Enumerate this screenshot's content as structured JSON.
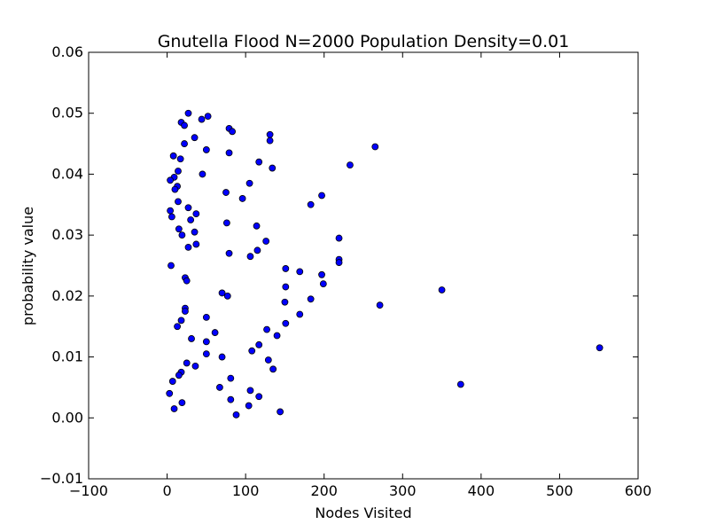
{
  "chart_data": {
    "type": "scatter",
    "title": "Gnutella Flood N=2000 Population Density=0.01",
    "xlabel": "Nodes Visited",
    "ylabel": "probability value",
    "xlim": [
      -100,
      600
    ],
    "ylim": [
      -0.01,
      0.06
    ],
    "xticks": [
      "−100",
      "0",
      "100",
      "200",
      "300",
      "400",
      "500",
      "600"
    ],
    "yticks": [
      "−0.01",
      "0.00",
      "0.01",
      "0.02",
      "0.03",
      "0.04",
      "0.05",
      "0.06"
    ],
    "grid": false,
    "marker_color": "#0000ff",
    "marker_edge_color": "#000000",
    "series": [
      {
        "points": [
          [
            27,
            0.05
          ],
          [
            52,
            0.0495
          ],
          [
            44,
            0.049
          ],
          [
            18,
            0.0485
          ],
          [
            22,
            0.048
          ],
          [
            79,
            0.0475
          ],
          [
            83,
            0.047
          ],
          [
            131,
            0.0465
          ],
          [
            131,
            0.0455
          ],
          [
            35,
            0.046
          ],
          [
            22,
            0.045
          ],
          [
            265,
            0.0445
          ],
          [
            50,
            0.044
          ],
          [
            79,
            0.0435
          ],
          [
            8,
            0.043
          ],
          [
            17,
            0.0425
          ],
          [
            117,
            0.042
          ],
          [
            233,
            0.0415
          ],
          [
            134,
            0.041
          ],
          [
            14,
            0.0405
          ],
          [
            45,
            0.04
          ],
          [
            9,
            0.0395
          ],
          [
            4,
            0.039
          ],
          [
            105,
            0.0385
          ],
          [
            13,
            0.038
          ],
          [
            10,
            0.0375
          ],
          [
            75,
            0.037
          ],
          [
            197,
            0.0365
          ],
          [
            96,
            0.036
          ],
          [
            14,
            0.0355
          ],
          [
            183,
            0.035
          ],
          [
            27,
            0.0345
          ],
          [
            4,
            0.034
          ],
          [
            37,
            0.0335
          ],
          [
            6,
            0.033
          ],
          [
            30,
            0.0325
          ],
          [
            76,
            0.032
          ],
          [
            114,
            0.0315
          ],
          [
            15,
            0.031
          ],
          [
            35,
            0.0305
          ],
          [
            19,
            0.03
          ],
          [
            219,
            0.0295
          ],
          [
            126,
            0.029
          ],
          [
            37,
            0.0285
          ],
          [
            27,
            0.028
          ],
          [
            115,
            0.0275
          ],
          [
            79,
            0.027
          ],
          [
            106,
            0.0265
          ],
          [
            219,
            0.026
          ],
          [
            219,
            0.0255
          ],
          [
            5,
            0.025
          ],
          [
            151,
            0.0245
          ],
          [
            169,
            0.024
          ],
          [
            197,
            0.0235
          ],
          [
            23,
            0.023
          ],
          [
            25,
            0.0225
          ],
          [
            151,
            0.0215
          ],
          [
            199,
            0.022
          ],
          [
            350,
            0.021
          ],
          [
            70,
            0.0205
          ],
          [
            77,
            0.02
          ],
          [
            183,
            0.0195
          ],
          [
            150,
            0.019
          ],
          [
            271,
            0.0185
          ],
          [
            23,
            0.018
          ],
          [
            23,
            0.0175
          ],
          [
            169,
            0.017
          ],
          [
            50,
            0.0165
          ],
          [
            18,
            0.016
          ],
          [
            151,
            0.0155
          ],
          [
            13,
            0.015
          ],
          [
            127,
            0.0145
          ],
          [
            61,
            0.014
          ],
          [
            140,
            0.0135
          ],
          [
            31,
            0.013
          ],
          [
            50,
            0.0125
          ],
          [
            117,
            0.012
          ],
          [
            551,
            0.0115
          ],
          [
            108,
            0.011
          ],
          [
            50,
            0.0105
          ],
          [
            70,
            0.01
          ],
          [
            129,
            0.0095
          ],
          [
            25,
            0.009
          ],
          [
            36,
            0.0085
          ],
          [
            135,
            0.008
          ],
          [
            18,
            0.0075
          ],
          [
            15,
            0.007
          ],
          [
            81,
            0.0065
          ],
          [
            7,
            0.006
          ],
          [
            374,
            0.0055
          ],
          [
            67,
            0.005
          ],
          [
            106,
            0.0045
          ],
          [
            3,
            0.004
          ],
          [
            117,
            0.0035
          ],
          [
            81,
            0.003
          ],
          [
            19,
            0.0025
          ],
          [
            104,
            0.002
          ],
          [
            9,
            0.0015
          ],
          [
            144,
            0.001
          ],
          [
            88,
            0.0005
          ]
        ]
      }
    ]
  }
}
